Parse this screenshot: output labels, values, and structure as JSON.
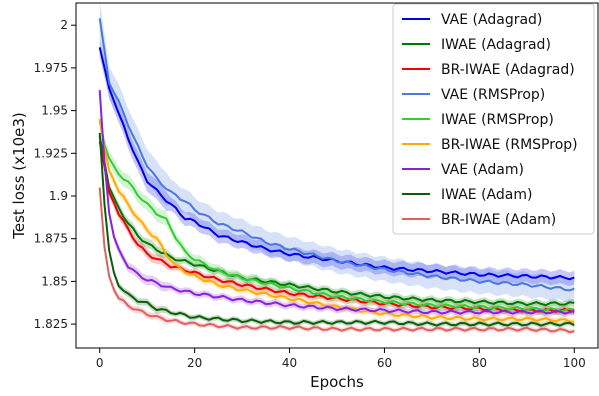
{
  "chart_data": {
    "type": "line",
    "xlabel": "Epochs",
    "ylabel": "Test loss (x10e3)",
    "xlim": [
      -5,
      105
    ],
    "ylim": [
      1.811,
      2.013
    ],
    "xticks": [
      0,
      20,
      40,
      60,
      80,
      100
    ],
    "xtick_labels": [
      "0",
      "20",
      "40",
      "60",
      "80",
      "100"
    ],
    "yticks": [
      1.825,
      1.85,
      1.875,
      1.9,
      1.925,
      1.95,
      1.975,
      2.0
    ],
    "ytick_labels": [
      "1.825",
      "1.85",
      "1.875",
      "1.9",
      "1.925",
      "1.95",
      "1.975",
      "2"
    ],
    "legend_position": "top-right",
    "grid": false,
    "series": [
      {
        "name": "VAE (Adagrad)",
        "color": "#0000ee",
        "points": [
          [
            0,
            1.987
          ],
          [
            1,
            1.975
          ],
          [
            2,
            1.963
          ],
          [
            4,
            1.948
          ],
          [
            6,
            1.934
          ],
          [
            8,
            1.92
          ],
          [
            10,
            1.909
          ],
          [
            12,
            1.903
          ],
          [
            15,
            1.895
          ],
          [
            18,
            1.887
          ],
          [
            20,
            1.885
          ],
          [
            25,
            1.877
          ],
          [
            30,
            1.873
          ],
          [
            35,
            1.869
          ],
          [
            40,
            1.866
          ],
          [
            50,
            1.862
          ],
          [
            60,
            1.858
          ],
          [
            70,
            1.856
          ],
          [
            80,
            1.854
          ],
          [
            90,
            1.853
          ],
          [
            100,
            1.852
          ]
        ],
        "band": 0.004
      },
      {
        "name": "IWAE (Adagrad)",
        "color": "#007700",
        "points": [
          [
            0,
            1.935
          ],
          [
            1,
            1.92
          ],
          [
            2,
            1.905
          ],
          [
            4,
            1.893
          ],
          [
            6,
            1.884
          ],
          [
            8,
            1.877
          ],
          [
            10,
            1.872
          ],
          [
            15,
            1.864
          ],
          [
            20,
            1.86
          ],
          [
            25,
            1.856
          ],
          [
            30,
            1.852
          ],
          [
            40,
            1.848
          ],
          [
            50,
            1.844
          ],
          [
            60,
            1.841
          ],
          [
            70,
            1.839
          ],
          [
            80,
            1.838
          ],
          [
            90,
            1.837
          ],
          [
            100,
            1.837
          ]
        ],
        "band": 0.002
      },
      {
        "name": "BR-IWAE (Adagrad)",
        "color": "#ee0000",
        "points": [
          [
            0,
            1.932
          ],
          [
            1,
            1.917
          ],
          [
            2,
            1.902
          ],
          [
            4,
            1.89
          ],
          [
            6,
            1.88
          ],
          [
            8,
            1.872
          ],
          [
            10,
            1.866
          ],
          [
            15,
            1.859
          ],
          [
            20,
            1.855
          ],
          [
            25,
            1.851
          ],
          [
            30,
            1.848
          ],
          [
            40,
            1.843
          ],
          [
            50,
            1.84
          ],
          [
            60,
            1.837
          ],
          [
            70,
            1.835
          ],
          [
            80,
            1.834
          ],
          [
            90,
            1.833
          ],
          [
            100,
            1.833
          ]
        ],
        "band": 0.002
      },
      {
        "name": "VAE (RMSProp)",
        "color": "#4a78dd",
        "points": [
          [
            0,
            2.004
          ],
          [
            1,
            1.985
          ],
          [
            2,
            1.966
          ],
          [
            4,
            1.955
          ],
          [
            6,
            1.942
          ],
          [
            8,
            1.929
          ],
          [
            10,
            1.918
          ],
          [
            12,
            1.91
          ],
          [
            15,
            1.902
          ],
          [
            18,
            1.897
          ],
          [
            20,
            1.892
          ],
          [
            25,
            1.884
          ],
          [
            30,
            1.879
          ],
          [
            35,
            1.873
          ],
          [
            40,
            1.869
          ],
          [
            50,
            1.862
          ],
          [
            60,
            1.857
          ],
          [
            70,
            1.853
          ],
          [
            80,
            1.85
          ],
          [
            90,
            1.848
          ],
          [
            100,
            1.845
          ]
        ],
        "band": 0.007
      },
      {
        "name": "IWAE (RMSProp)",
        "color": "#33cc33",
        "points": [
          [
            0,
            1.944
          ],
          [
            1,
            1.93
          ],
          [
            2,
            1.922
          ],
          [
            4,
            1.913
          ],
          [
            6,
            1.908
          ],
          [
            8,
            1.901
          ],
          [
            10,
            1.895
          ],
          [
            12,
            1.89
          ],
          [
            14,
            1.886
          ],
          [
            16,
            1.876
          ],
          [
            18,
            1.867
          ],
          [
            20,
            1.863
          ],
          [
            25,
            1.856
          ],
          [
            30,
            1.852
          ],
          [
            40,
            1.846
          ],
          [
            50,
            1.841
          ],
          [
            60,
            1.838
          ],
          [
            70,
            1.836
          ],
          [
            80,
            1.835
          ],
          [
            90,
            1.834
          ],
          [
            100,
            1.833
          ]
        ],
        "band": 0.003
      },
      {
        "name": "BR-IWAE (RMSProp)",
        "color": "#ffaa00",
        "points": [
          [
            0,
            1.945
          ],
          [
            1,
            1.928
          ],
          [
            2,
            1.915
          ],
          [
            4,
            1.903
          ],
          [
            6,
            1.895
          ],
          [
            8,
            1.887
          ],
          [
            10,
            1.88
          ],
          [
            12,
            1.875
          ],
          [
            14,
            1.866
          ],
          [
            16,
            1.859
          ],
          [
            20,
            1.853
          ],
          [
            25,
            1.848
          ],
          [
            30,
            1.845
          ],
          [
            40,
            1.84
          ],
          [
            50,
            1.835
          ],
          [
            60,
            1.831
          ],
          [
            70,
            1.829
          ],
          [
            80,
            1.828
          ],
          [
            90,
            1.828
          ],
          [
            100,
            1.827
          ]
        ],
        "band": 0.002
      },
      {
        "name": "VAE (Adam)",
        "color": "#8822dd",
        "points": [
          [
            0,
            1.962
          ],
          [
            1,
            1.92
          ],
          [
            2,
            1.89
          ],
          [
            3,
            1.876
          ],
          [
            4,
            1.868
          ],
          [
            6,
            1.859
          ],
          [
            8,
            1.854
          ],
          [
            10,
            1.851
          ],
          [
            12,
            1.849
          ],
          [
            15,
            1.846
          ],
          [
            20,
            1.843
          ],
          [
            30,
            1.839
          ],
          [
            40,
            1.836
          ],
          [
            50,
            1.834
          ],
          [
            60,
            1.833
          ],
          [
            70,
            1.832
          ],
          [
            80,
            1.832
          ],
          [
            90,
            1.832
          ],
          [
            100,
            1.832
          ]
        ],
        "band": 0.002
      },
      {
        "name": "IWAE (Adam)",
        "color": "#0a5e0a",
        "points": [
          [
            0,
            1.937
          ],
          [
            1,
            1.895
          ],
          [
            2,
            1.868
          ],
          [
            3,
            1.855
          ],
          [
            4,
            1.848
          ],
          [
            6,
            1.842
          ],
          [
            8,
            1.839
          ],
          [
            10,
            1.837
          ],
          [
            12,
            1.834
          ],
          [
            15,
            1.832
          ],
          [
            20,
            1.829
          ],
          [
            30,
            1.827
          ],
          [
            40,
            1.826
          ],
          [
            50,
            1.826
          ],
          [
            60,
            1.826
          ],
          [
            70,
            1.825
          ],
          [
            80,
            1.825
          ],
          [
            90,
            1.825
          ],
          [
            100,
            1.825
          ]
        ],
        "band": 0.0015
      },
      {
        "name": "BR-IWAE (Adam)",
        "color": "#e06060",
        "points": [
          [
            0,
            1.905
          ],
          [
            1,
            1.87
          ],
          [
            2,
            1.853
          ],
          [
            3,
            1.845
          ],
          [
            4,
            1.84
          ],
          [
            6,
            1.836
          ],
          [
            8,
            1.833
          ],
          [
            10,
            1.831
          ],
          [
            12,
            1.829
          ],
          [
            15,
            1.827
          ],
          [
            20,
            1.825
          ],
          [
            30,
            1.823
          ],
          [
            40,
            1.823
          ],
          [
            50,
            1.822
          ],
          [
            60,
            1.822
          ],
          [
            70,
            1.822
          ],
          [
            80,
            1.822
          ],
          [
            90,
            1.822
          ],
          [
            100,
            1.821
          ]
        ],
        "band": 0.0015
      }
    ]
  }
}
